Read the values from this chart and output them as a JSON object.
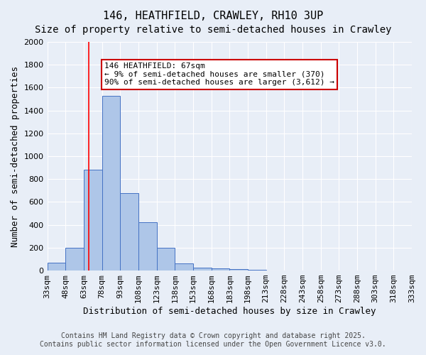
{
  "title": "146, HEATHFIELD, CRAWLEY, RH10 3UP",
  "subtitle": "Size of property relative to semi-detached houses in Crawley",
  "xlabel": "Distribution of semi-detached houses by size in Crawley",
  "ylabel": "Number of semi-detached properties",
  "bin_edges": [
    33,
    48,
    63,
    78,
    93,
    108,
    123,
    138,
    153,
    168,
    183,
    198,
    213,
    228,
    243,
    258,
    273,
    288,
    303,
    318,
    333
  ],
  "bar_heights": [
    70,
    200,
    880,
    1530,
    680,
    420,
    200,
    60,
    25,
    20,
    15,
    5,
    3,
    2,
    1,
    1,
    0,
    0,
    0,
    0
  ],
  "bar_color": "#aec6e8",
  "bar_edge_color": "#4472c4",
  "background_color": "#e8eef7",
  "grid_color": "#ffffff",
  "red_line_x": 67,
  "annotation_text": "146 HEATHFIELD: 67sqm\n← 9% of semi-detached houses are smaller (370)\n90% of semi-detached houses are larger (3,612) →",
  "annotation_box_color": "#ffffff",
  "annotation_box_edge_color": "#cc0000",
  "ylim": [
    0,
    2000
  ],
  "yticks": [
    0,
    200,
    400,
    600,
    800,
    1000,
    1200,
    1400,
    1600,
    1800,
    2000
  ],
  "footnote": "Contains HM Land Registry data © Crown copyright and database right 2025.\nContains public sector information licensed under the Open Government Licence v3.0.",
  "title_fontsize": 11,
  "subtitle_fontsize": 10,
  "xlabel_fontsize": 9,
  "ylabel_fontsize": 9,
  "tick_fontsize": 8,
  "annotation_fontsize": 8,
  "footnote_fontsize": 7
}
